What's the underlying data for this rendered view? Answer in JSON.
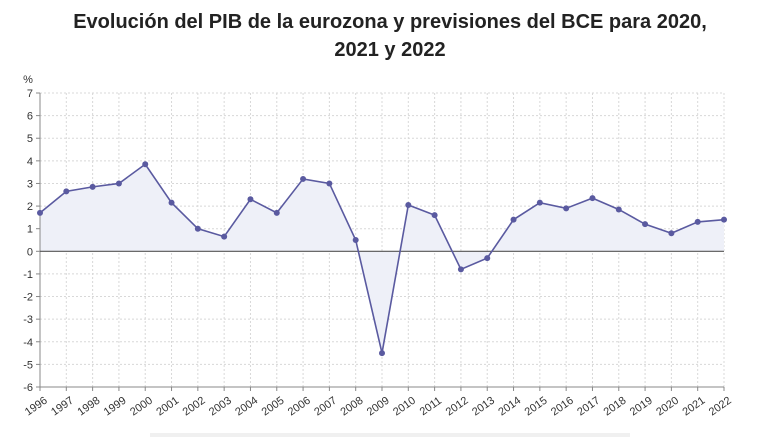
{
  "title_line1": "Evolución del PIB de la eurozona y previsiones del BCE para 2020,",
  "title_line2": "2021 y 2022",
  "colors": {
    "line": "#5a5aa0",
    "fill": "#eef0f8",
    "grid": "#d8d8d8",
    "zero_line": "#555555"
  },
  "chart_data": {
    "type": "area",
    "title": "Evolución del PIB de la eurozona y previsiones del BCE para 2020, 2021 y 2022",
    "ylabel": "%",
    "xlabel": "",
    "ylim": [
      -6,
      7
    ],
    "yticks": [
      7,
      6,
      5,
      4,
      3,
      2,
      1,
      0,
      -1,
      -2,
      -3,
      -4,
      -5,
      -6
    ],
    "grid": true,
    "categories": [
      "1996",
      "1997",
      "1998",
      "1999",
      "2000",
      "2001",
      "2002",
      "2003",
      "2004",
      "2005",
      "2006",
      "2007",
      "2008",
      "2009",
      "2010",
      "2011",
      "2012",
      "2013",
      "2014",
      "2015",
      "2016",
      "2017",
      "2018",
      "2019",
      "2020",
      "2021",
      "2022"
    ],
    "values": [
      1.7,
      2.65,
      2.85,
      3.0,
      3.85,
      2.15,
      1.0,
      0.65,
      2.3,
      1.7,
      3.2,
      3.0,
      0.5,
      -4.5,
      2.05,
      1.6,
      -0.8,
      -0.3,
      1.4,
      2.15,
      1.9,
      2.35,
      1.85,
      1.2,
      0.8,
      1.3,
      1.4
    ]
  }
}
